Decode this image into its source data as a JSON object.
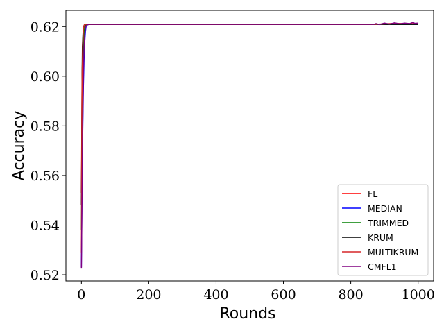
{
  "chart_data": {
    "type": "line",
    "title": "",
    "xlabel": "Rounds",
    "ylabel": "Accuracy",
    "xlim": [
      -46,
      1046
    ],
    "ylim": [
      0.5175,
      0.6265
    ],
    "xticks": [
      0,
      200,
      400,
      600,
      800,
      1000
    ],
    "xtick_labels": [
      "0",
      "200",
      "400",
      "600",
      "800",
      "1000"
    ],
    "yticks": [
      0.52,
      0.54,
      0.56,
      0.58,
      0.6,
      0.62
    ],
    "ytick_labels": [
      "0.52",
      "0.54",
      "0.56",
      "0.58",
      "0.60",
      "0.62"
    ],
    "grid": false,
    "legend_position": "lower-right",
    "series": [
      {
        "name": "FL",
        "color": "#ff0000",
        "x": [
          0,
          2,
          4,
          6,
          8,
          10,
          14,
          20,
          30,
          100,
          500,
          870,
          1000
        ],
        "y": [
          0.553,
          0.6,
          0.612,
          0.619,
          0.6205,
          0.6208,
          0.6209,
          0.6209,
          0.6209,
          0.6209,
          0.6209,
          0.6209,
          0.6209
        ]
      },
      {
        "name": "MEDIAN",
        "color": "#0000ff",
        "x": [
          0,
          2,
          4,
          6,
          8,
          10,
          12,
          14,
          16,
          20,
          30,
          100,
          500,
          870,
          1000
        ],
        "y": [
          0.523,
          0.556,
          0.578,
          0.596,
          0.607,
          0.614,
          0.618,
          0.62,
          0.6205,
          0.6208,
          0.6209,
          0.6209,
          0.6209,
          0.6209,
          0.6209
        ]
      },
      {
        "name": "TRIMMED",
        "color": "#008000",
        "x": [
          0,
          2,
          4,
          6,
          8,
          10,
          12,
          14,
          20,
          30,
          100,
          500,
          870,
          1000
        ],
        "y": [
          0.538,
          0.574,
          0.596,
          0.61,
          0.617,
          0.62,
          0.6205,
          0.6208,
          0.6209,
          0.6209,
          0.6209,
          0.6209,
          0.6209,
          0.6209
        ]
      },
      {
        "name": "KRUM",
        "color": "#000000",
        "x": [
          0,
          1,
          2,
          3,
          4,
          5,
          6,
          8,
          10,
          12,
          15,
          20,
          30,
          100,
          500,
          870,
          1000
        ],
        "y": [
          0.548,
          0.57,
          0.598,
          0.612,
          0.6145,
          0.6175,
          0.6198,
          0.6205,
          0.6208,
          0.6209,
          0.6209,
          0.6209,
          0.6209,
          0.6209,
          0.6209,
          0.6209,
          0.6209
        ]
      },
      {
        "name": "MULTIKRUM",
        "color": "#d62728",
        "x": [
          0,
          2,
          4,
          6,
          8,
          10,
          14,
          20,
          30,
          100,
          500,
          870,
          900,
          930,
          960,
          1000
        ],
        "y": [
          0.529,
          0.598,
          0.612,
          0.619,
          0.6205,
          0.6208,
          0.6209,
          0.6209,
          0.6209,
          0.6209,
          0.6209,
          0.6209,
          0.6211,
          0.6213,
          0.6212,
          0.6212
        ]
      },
      {
        "name": "CMFL1",
        "color": "#800080",
        "x": [
          0,
          2,
          4,
          6,
          8,
          10,
          12,
          14,
          18,
          24,
          30,
          100,
          500,
          870,
          875,
          885,
          900,
          915,
          930,
          945,
          960,
          975,
          985,
          990,
          1000
        ],
        "y": [
          0.5225,
          0.553,
          0.582,
          0.601,
          0.612,
          0.617,
          0.6195,
          0.6203,
          0.6207,
          0.6209,
          0.6209,
          0.6209,
          0.6209,
          0.6209,
          0.6212,
          0.6208,
          0.6214,
          0.621,
          0.6215,
          0.6211,
          0.6214,
          0.6212,
          0.6217,
          0.6213,
          0.6214
        ]
      }
    ]
  }
}
